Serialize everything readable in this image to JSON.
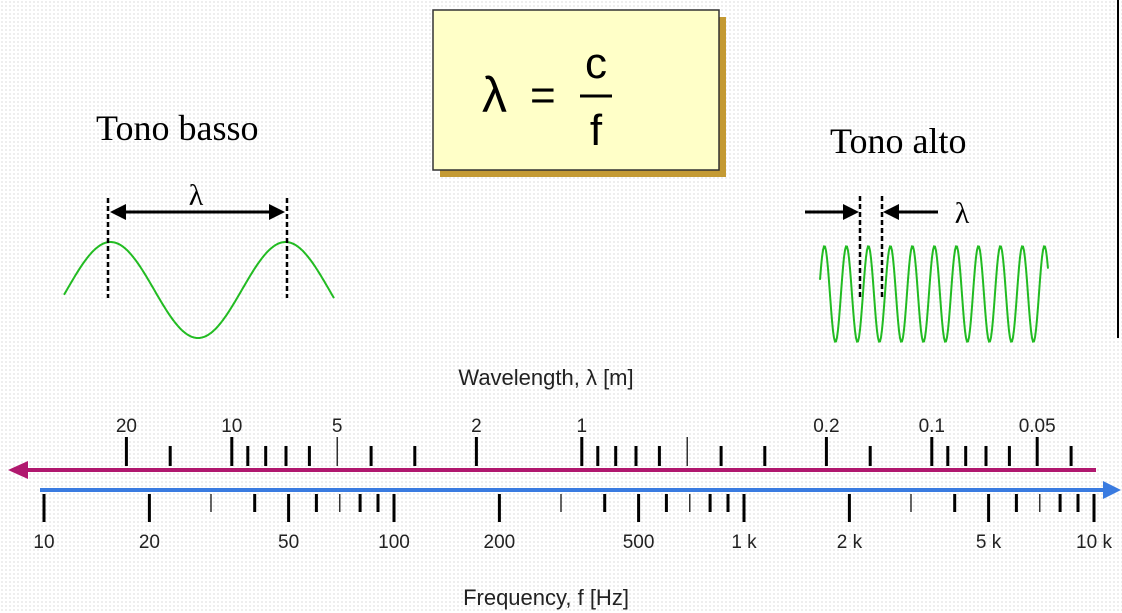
{
  "formula": {
    "lhs": "λ",
    "eq": "=",
    "numerator": "c",
    "denominator": "f"
  },
  "low_tone": {
    "title": "Tono basso",
    "symbol": "λ"
  },
  "high_tone": {
    "title": "Tono alto",
    "symbol": "λ"
  },
  "wavelength_axis": {
    "title": "Wavelength, λ [m]",
    "labels": [
      {
        "text": "20",
        "value": 20
      },
      {
        "text": "10",
        "value": 10
      },
      {
        "text": "5",
        "value": 5
      },
      {
        "text": "2",
        "value": 2
      },
      {
        "text": "1",
        "value": 1
      },
      {
        "text": "0.2",
        "value": 0.2
      },
      {
        "text": "0.1",
        "value": 0.1
      },
      {
        "text": "0.05",
        "value": 0.05
      }
    ],
    "arrow_color": "#b0186e"
  },
  "frequency_axis": {
    "title": "Frequency, f [Hz]",
    "labels": [
      {
        "text": "10",
        "value": 10
      },
      {
        "text": "20",
        "value": 20
      },
      {
        "text": "50",
        "value": 50
      },
      {
        "text": "100",
        "value": 100
      },
      {
        "text": "200",
        "value": 200
      },
      {
        "text": "500",
        "value": 500
      },
      {
        "text": "1 k",
        "value": 1000
      },
      {
        "text": "2 k",
        "value": 2000
      },
      {
        "text": "5 k",
        "value": 5000
      },
      {
        "text": "10 k",
        "value": 10000
      }
    ],
    "arrow_color": "#3a7be0"
  },
  "colors": {
    "wave": "#22bb22",
    "formula_box": "#ffffc8",
    "formula_shadow": "#c49a33"
  }
}
